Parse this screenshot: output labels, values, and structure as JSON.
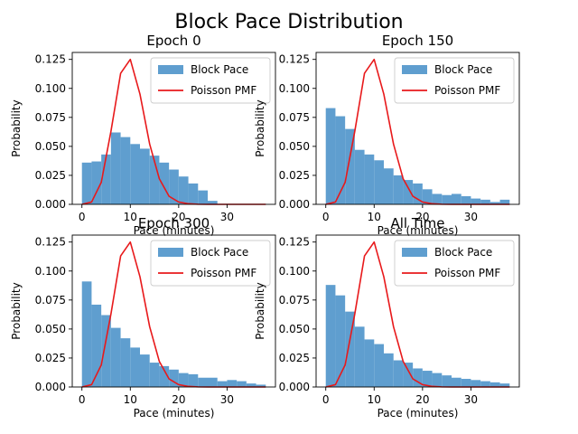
{
  "figure": {
    "title": "Block Pace Distribution"
  },
  "legend": {
    "bar_label": "Block Pace",
    "line_label": "Poisson PMF"
  },
  "colors": {
    "bar": "#5f9ecf",
    "line": "#e8191b",
    "axis": "#000000"
  },
  "chart_data": [
    {
      "type": "bar",
      "title": "Epoch 0",
      "xlabel": "Pace (minutes)",
      "ylabel": "Probability",
      "xlim": [
        -2,
        40
      ],
      "ylim": [
        0,
        0.131
      ],
      "xticks": [
        "0",
        "10",
        "20",
        "30"
      ],
      "yticks": [
        "0.000",
        "0.025",
        "0.050",
        "0.075",
        "0.100",
        "0.125"
      ],
      "legend_position": "top-right",
      "grid": false,
      "bin_edges": [
        0,
        2,
        4,
        6,
        8,
        10,
        12,
        14,
        16,
        18,
        20,
        22,
        24,
        26,
        28,
        30,
        32,
        34,
        36,
        38
      ],
      "series": [
        {
          "name": "Block Pace",
          "type": "bar",
          "values": [
            0.036,
            0.037,
            0.043,
            0.062,
            0.058,
            0.052,
            0.048,
            0.042,
            0.036,
            0.03,
            0.024,
            0.018,
            0.012,
            0.003,
            0.0,
            0.0,
            0.0,
            0.0,
            0.0
          ]
        },
        {
          "name": "Poisson PMF",
          "type": "line",
          "x": [
            0,
            2,
            4,
            6,
            8,
            10,
            12,
            14,
            16,
            18,
            20,
            22,
            24,
            26,
            28,
            30,
            32,
            34,
            36,
            38
          ],
          "values": [
            0.0,
            0.002,
            0.019,
            0.063,
            0.113,
            0.125,
            0.095,
            0.052,
            0.022,
            0.007,
            0.002,
            0.0005,
            0.0001,
            0.0,
            0.0,
            0.0,
            0.0,
            0.0,
            0.0,
            0.0
          ]
        }
      ]
    },
    {
      "type": "bar",
      "title": "Epoch 150",
      "xlabel": "Pace (minutes)",
      "ylabel": "Probability",
      "xlim": [
        -2,
        40
      ],
      "ylim": [
        0,
        0.131
      ],
      "xticks": [
        "0",
        "10",
        "20",
        "30"
      ],
      "yticks": [
        "0.000",
        "0.025",
        "0.050",
        "0.075",
        "0.100",
        "0.125"
      ],
      "legend_position": "top-right",
      "grid": false,
      "bin_edges": [
        0,
        2,
        4,
        6,
        8,
        10,
        12,
        14,
        16,
        18,
        20,
        22,
        24,
        26,
        28,
        30,
        32,
        34,
        36,
        38
      ],
      "series": [
        {
          "name": "Block Pace",
          "type": "bar",
          "values": [
            0.083,
            0.076,
            0.065,
            0.047,
            0.043,
            0.038,
            0.031,
            0.025,
            0.021,
            0.018,
            0.013,
            0.009,
            0.008,
            0.009,
            0.007,
            0.005,
            0.004,
            0.002,
            0.004
          ]
        },
        {
          "name": "Poisson PMF",
          "type": "line",
          "x": [
            0,
            2,
            4,
            6,
            8,
            10,
            12,
            14,
            16,
            18,
            20,
            22,
            24,
            26,
            28,
            30,
            32,
            34,
            36,
            38
          ],
          "values": [
            0.0,
            0.002,
            0.019,
            0.063,
            0.113,
            0.125,
            0.095,
            0.052,
            0.022,
            0.007,
            0.002,
            0.0005,
            0.0001,
            0.0,
            0.0,
            0.0,
            0.0,
            0.0,
            0.0,
            0.0
          ]
        }
      ]
    },
    {
      "type": "bar",
      "title": "Epoch 300",
      "xlabel": "Pace (minutes)",
      "ylabel": "Probability",
      "xlim": [
        -2,
        40
      ],
      "ylim": [
        0,
        0.131
      ],
      "xticks": [
        "0",
        "10",
        "20",
        "30"
      ],
      "yticks": [
        "0.000",
        "0.025",
        "0.050",
        "0.075",
        "0.100",
        "0.125"
      ],
      "legend_position": "top-right",
      "grid": false,
      "bin_edges": [
        0,
        2,
        4,
        6,
        8,
        10,
        12,
        14,
        16,
        18,
        20,
        22,
        24,
        26,
        28,
        30,
        32,
        34,
        36,
        38
      ],
      "series": [
        {
          "name": "Block Pace",
          "type": "bar",
          "values": [
            0.091,
            0.071,
            0.062,
            0.051,
            0.042,
            0.034,
            0.028,
            0.021,
            0.018,
            0.015,
            0.012,
            0.011,
            0.008,
            0.008,
            0.005,
            0.006,
            0.005,
            0.003,
            0.002
          ]
        },
        {
          "name": "Poisson PMF",
          "type": "line",
          "x": [
            0,
            2,
            4,
            6,
            8,
            10,
            12,
            14,
            16,
            18,
            20,
            22,
            24,
            26,
            28,
            30,
            32,
            34,
            36,
            38
          ],
          "values": [
            0.0,
            0.002,
            0.019,
            0.063,
            0.113,
            0.125,
            0.095,
            0.052,
            0.022,
            0.007,
            0.002,
            0.0005,
            0.0001,
            0.0,
            0.0,
            0.0,
            0.0,
            0.0,
            0.0,
            0.0
          ]
        }
      ]
    },
    {
      "type": "bar",
      "title": "All Time",
      "xlabel": "Pace (minutes)",
      "ylabel": "Probability",
      "xlim": [
        -2,
        40
      ],
      "ylim": [
        0,
        0.131
      ],
      "xticks": [
        "0",
        "10",
        "20",
        "30"
      ],
      "yticks": [
        "0.000",
        "0.025",
        "0.050",
        "0.075",
        "0.100",
        "0.125"
      ],
      "legend_position": "top-right",
      "grid": false,
      "bin_edges": [
        0,
        2,
        4,
        6,
        8,
        10,
        12,
        14,
        16,
        18,
        20,
        22,
        24,
        26,
        28,
        30,
        32,
        34,
        36,
        38
      ],
      "series": [
        {
          "name": "Block Pace",
          "type": "bar",
          "values": [
            0.088,
            0.079,
            0.065,
            0.052,
            0.041,
            0.037,
            0.029,
            0.023,
            0.021,
            0.016,
            0.014,
            0.012,
            0.01,
            0.008,
            0.007,
            0.006,
            0.005,
            0.004,
            0.003
          ]
        },
        {
          "name": "Poisson PMF",
          "type": "line",
          "x": [
            0,
            2,
            4,
            6,
            8,
            10,
            12,
            14,
            16,
            18,
            20,
            22,
            24,
            26,
            28,
            30,
            32,
            34,
            36,
            38
          ],
          "values": [
            0.0,
            0.002,
            0.019,
            0.063,
            0.113,
            0.125,
            0.095,
            0.052,
            0.022,
            0.007,
            0.002,
            0.0005,
            0.0001,
            0.0,
            0.0,
            0.0,
            0.0,
            0.0,
            0.0,
            0.0
          ]
        }
      ]
    }
  ]
}
